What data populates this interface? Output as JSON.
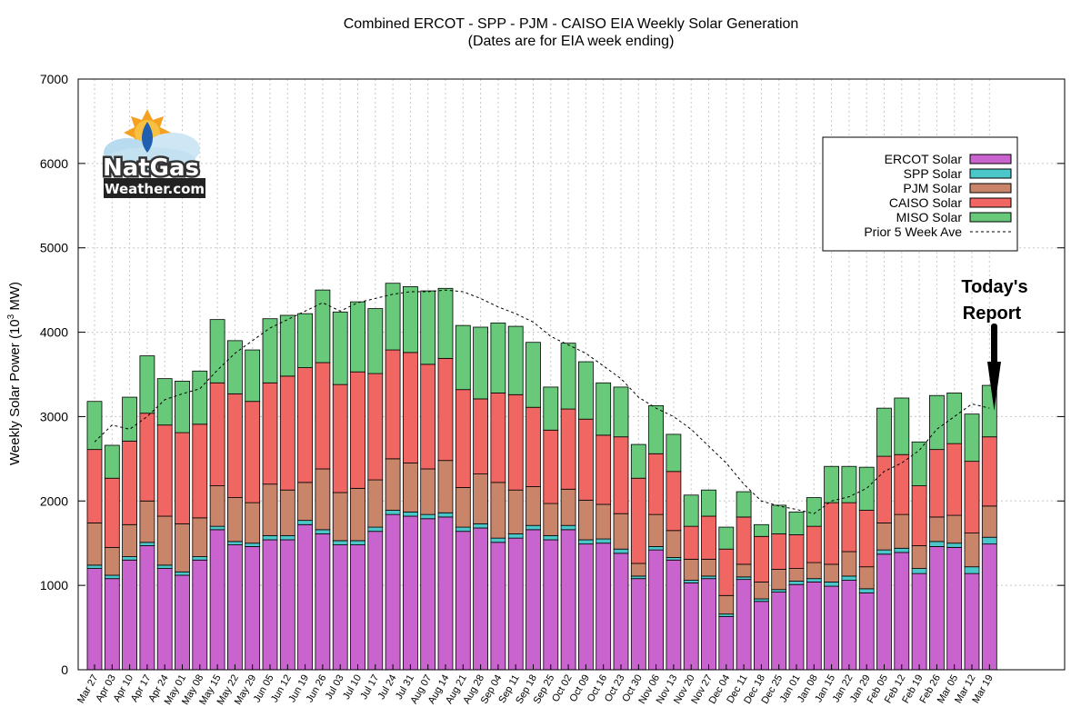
{
  "chart_data": {
    "type": "bar",
    "stacked": true,
    "title": "Combined ERCOT - SPP - PJM - CAISO EIA Weekly Solar Generation",
    "subtitle": "(Dates are for EIA week ending)",
    "ylabel_main": "Weekly Solar Power (10",
    "ylabel_sup": "3",
    "ylabel_end": " MW)",
    "ylim": [
      0,
      7000
    ],
    "yticks": [
      0,
      1000,
      2000,
      3000,
      4000,
      5000,
      6000,
      7000
    ],
    "grid": true,
    "legend_position": "top-right",
    "categories": [
      "Mar 27",
      "Apr 03",
      "Apr 10",
      "Apr 17",
      "Apr 24",
      "May 01",
      "May 08",
      "May 15",
      "May 22",
      "May 29",
      "Jun 05",
      "Jun 12",
      "Jun 19",
      "Jun 26",
      "Jul 03",
      "Jul 10",
      "Jul 17",
      "Jul 24",
      "Jul 31",
      "Aug 07",
      "Aug 14",
      "Aug 21",
      "Aug 28",
      "Sep 04",
      "Sep 11",
      "Sep 18",
      "Sep 25",
      "Oct 02",
      "Oct 09",
      "Oct 16",
      "Oct 23",
      "Oct 30",
      "Nov 06",
      "Nov 13",
      "Nov 20",
      "Nov 27",
      "Dec 04",
      "Dec 11",
      "Dec 18",
      "Dec 25",
      "Jan 01",
      "Jan 08",
      "Jan 15",
      "Jan 22",
      "Jan 29",
      "Feb 05",
      "Feb 12",
      "Feb 19",
      "Feb 26",
      "Mar 05",
      "Mar 12",
      "Mar 19"
    ],
    "series": [
      {
        "name": "ERCOT Solar",
        "color": "#c964cf",
        "values": [
          1200,
          1080,
          1300,
          1470,
          1200,
          1120,
          1300,
          1660,
          1480,
          1460,
          1540,
          1540,
          1720,
          1610,
          1480,
          1480,
          1640,
          1840,
          1820,
          1790,
          1810,
          1640,
          1680,
          1510,
          1560,
          1660,
          1540,
          1660,
          1490,
          1500,
          1380,
          1080,
          1420,
          1300,
          1030,
          1080,
          630,
          1070,
          810,
          920,
          1010,
          1040,
          990,
          1060,
          910,
          1370,
          1390,
          1140,
          1460,
          1450,
          1140,
          1490
        ]
      },
      {
        "name": "SPP Solar",
        "color": "#4cc7c9",
        "values": [
          40,
          40,
          40,
          40,
          40,
          40,
          40,
          40,
          40,
          40,
          50,
          50,
          50,
          50,
          50,
          50,
          50,
          50,
          50,
          50,
          50,
          50,
          50,
          50,
          50,
          50,
          50,
          50,
          50,
          50,
          50,
          30,
          40,
          30,
          30,
          30,
          30,
          30,
          30,
          30,
          40,
          40,
          50,
          50,
          50,
          50,
          50,
          60,
          60,
          50,
          80,
          80
        ]
      },
      {
        "name": "PJM Solar",
        "color": "#c8856a",
        "values": [
          500,
          330,
          380,
          490,
          580,
          570,
          460,
          480,
          520,
          480,
          610,
          540,
          450,
          720,
          570,
          620,
          560,
          610,
          580,
          540,
          620,
          470,
          590,
          660,
          520,
          460,
          380,
          430,
          470,
          410,
          420,
          150,
          380,
          320,
          250,
          200,
          220,
          150,
          200,
          240,
          150,
          190,
          210,
          290,
          260,
          320,
          400,
          270,
          290,
          330,
          400,
          370
        ]
      },
      {
        "name": "CAISO Solar",
        "color": "#f06662",
        "values": [
          870,
          820,
          990,
          1040,
          1080,
          1080,
          1110,
          1220,
          1230,
          1200,
          1200,
          1350,
          1360,
          1260,
          1280,
          1380,
          1260,
          1290,
          1310,
          1240,
          1210,
          1160,
          890,
          1060,
          1130,
          940,
          870,
          950,
          960,
          820,
          910,
          1010,
          720,
          700,
          390,
          510,
          550,
          560,
          540,
          420,
          400,
          430,
          730,
          580,
          670,
          790,
          710,
          710,
          800,
          850,
          850,
          820
        ]
      },
      {
        "name": "MISO Solar",
        "color": "#68c97a",
        "values": [
          570,
          390,
          520,
          680,
          550,
          610,
          630,
          750,
          630,
          610,
          760,
          720,
          640,
          860,
          860,
          830,
          770,
          790,
          780,
          870,
          830,
          760,
          850,
          830,
          810,
          770,
          510,
          780,
          680,
          620,
          590,
          400,
          570,
          440,
          370,
          310,
          260,
          300,
          140,
          340,
          270,
          340,
          430,
          430,
          510,
          570,
          670,
          520,
          640,
          600,
          560,
          610
        ]
      }
    ],
    "average_line": {
      "name": "Prior 5 Week Ave",
      "values": [
        2700,
        2900,
        2850,
        3000,
        3200,
        3270,
        3330,
        3550,
        3750,
        3900,
        4050,
        4150,
        4250,
        4350,
        4250,
        4350,
        4400,
        4450,
        4480,
        4480,
        4500,
        4480,
        4400,
        4300,
        4220,
        4120,
        3950,
        3850,
        3750,
        3600,
        3450,
        3230,
        3100,
        3000,
        2850,
        2650,
        2450,
        2200,
        2000,
        1940,
        1900,
        1850,
        2000,
        2050,
        2150,
        2350,
        2450,
        2600,
        2850,
        3000,
        3150,
        3100
      ]
    },
    "annotation": {
      "line1": "Today's",
      "line2": "Report"
    }
  },
  "logo": {
    "line1": "NatGas",
    "line2": "Weather.com"
  }
}
